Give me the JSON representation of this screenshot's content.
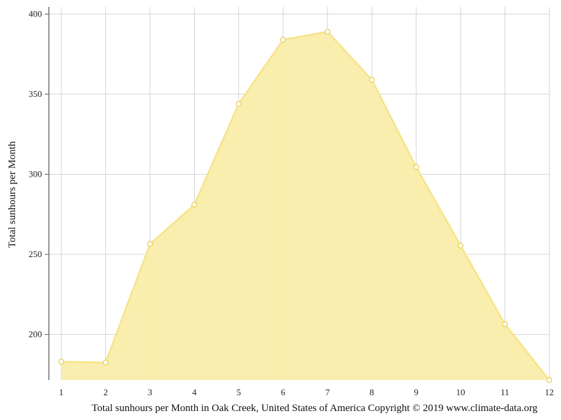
{
  "chart_data": {
    "type": "area",
    "x": [
      1,
      2,
      3,
      4,
      5,
      6,
      7,
      8,
      9,
      10,
      11,
      12
    ],
    "values": [
      183,
      182.5,
      256.5,
      281,
      344,
      384,
      389,
      359,
      304.5,
      255.5,
      206.5,
      171.5
    ],
    "xlabel": "Total sunhours per Month in Oak Creek, United States of America Copyright © 2019 www.climate-data.org",
    "ylabel": "Total sunhours per Month",
    "xticks": [
      "1",
      "2",
      "3",
      "4",
      "5",
      "6",
      "7",
      "8",
      "9",
      "10",
      "11",
      "12"
    ],
    "yticks": [
      200,
      250,
      300,
      350,
      400
    ],
    "xlim": [
      1,
      12
    ],
    "ylim": [
      171.5,
      404.5
    ],
    "grid": true,
    "legend": "none",
    "colors": {
      "fill": "#f9eda9",
      "line": "#f7e48a",
      "marker_stroke": "#e9cf55",
      "marker_fill": "#ffffff",
      "grid": "#d4d4d4",
      "axis": "#555555"
    }
  }
}
